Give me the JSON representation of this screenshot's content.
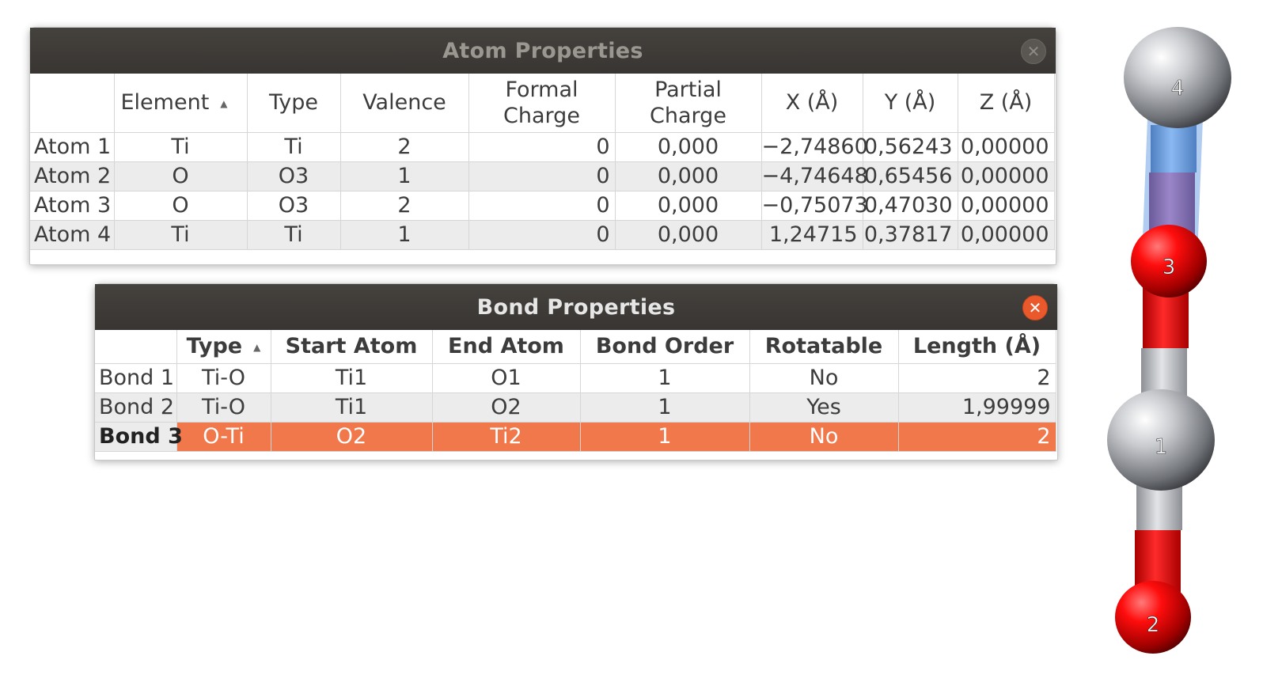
{
  "atom_window": {
    "title": "Atom Properties",
    "close_glyph": "✕",
    "columns": [
      "",
      "Element",
      "Type",
      "Valence",
      "Formal Charge",
      "Partial Charge",
      "X (Å)",
      "Y (Å)",
      "Z (Å)"
    ],
    "sort_arrow": "▲",
    "rows": [
      {
        "label": "Atom 1",
        "element": "Ti",
        "type": "Ti",
        "valence": "2",
        "formal": "0",
        "partial": "0,000",
        "x": "−2,74860",
        "y": "0,56243",
        "z": "0,00000"
      },
      {
        "label": "Atom 2",
        "element": "O",
        "type": "O3",
        "valence": "1",
        "formal": "0",
        "partial": "0,000",
        "x": "−4,74648",
        "y": "0,65456",
        "z": "0,00000"
      },
      {
        "label": "Atom 3",
        "element": "O",
        "type": "O3",
        "valence": "2",
        "formal": "0",
        "partial": "0,000",
        "x": "−0,75073",
        "y": "0,47030",
        "z": "0,00000"
      },
      {
        "label": "Atom 4",
        "element": "Ti",
        "type": "Ti",
        "valence": "1",
        "formal": "0",
        "partial": "0,000",
        "x": "1,24715",
        "y": "0,37817",
        "z": "0,00000"
      }
    ]
  },
  "bond_window": {
    "title": "Bond Properties",
    "close_glyph": "✕",
    "columns": [
      "",
      "Type",
      "Start Atom",
      "End Atom",
      "Bond Order",
      "Rotatable",
      "Length (Å)"
    ],
    "sort_arrow": "▲",
    "selected_row": 2,
    "rows": [
      {
        "label": "Bond 1",
        "type": "Ti-O",
        "start": "Ti1",
        "end": "O1",
        "order": "1",
        "rotatable": "No",
        "length": "2"
      },
      {
        "label": "Bond 2",
        "type": "Ti-O",
        "start": "Ti1",
        "end": "O2",
        "order": "1",
        "rotatable": "Yes",
        "length": "1,99999"
      },
      {
        "label": "Bond 3",
        "type": "O-Ti",
        "start": "O2",
        "end": "Ti2",
        "order": "1",
        "rotatable": "No",
        "length": "2"
      }
    ]
  },
  "molecule": {
    "atom_labels": [
      "4",
      "3",
      "1",
      "2"
    ]
  },
  "colors": {
    "titlebar": "#3e3b37",
    "title_text_inactive": "#9a9790",
    "title_text_active": "#e6e6e6",
    "close_inactive": "#5a5752",
    "close_active": "#e9592b",
    "selection": "#f0784a",
    "titanium": "#bfc2c7",
    "oxygen": "#ff0d0d",
    "highlight_bond": "#6fa3e6"
  }
}
